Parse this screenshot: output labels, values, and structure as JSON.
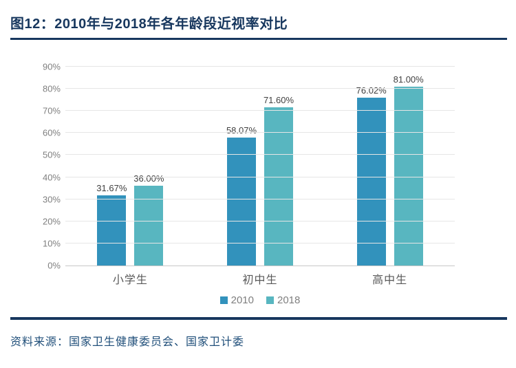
{
  "title": "图12：2010年与2018年各年龄段近视率对比",
  "source_note": "资料来源：国家卫生健康委员会、国家卫计委",
  "colors": {
    "title_navy": "#17375E",
    "source_blue": "#1F4E79",
    "series_2010": "#3292BC",
    "series_2018": "#58B6C0",
    "gridline": "#E6E6E6",
    "axis_line": "#C8C8C8",
    "tick_text": "#7F7F7F",
    "category_text": "#595959",
    "value_label_text": "#404040"
  },
  "chart_data": {
    "type": "bar",
    "title": "图12：2010年与2018年各年龄段近视率对比",
    "categories": [
      "小学生",
      "初中生",
      "高中生"
    ],
    "series": [
      {
        "name": "2010",
        "color": "#3292BC",
        "values": [
          31.67,
          58.07,
          76.02
        ],
        "labels": [
          "31.67%",
          "58.07%",
          "76.02%"
        ]
      },
      {
        "name": "2018",
        "color": "#58B6C0",
        "values": [
          36.0,
          71.6,
          81.0
        ],
        "labels": [
          "36.00%",
          "71.60%",
          "81.00%"
        ]
      }
    ],
    "xlabel": "",
    "ylabel": "",
    "ylim": [
      0,
      90
    ],
    "y_ticks": [
      "0%",
      "10%",
      "20%",
      "30%",
      "40%",
      "50%",
      "60%",
      "70%",
      "80%",
      "90%"
    ],
    "grid": true,
    "legend_position": "bottom"
  }
}
